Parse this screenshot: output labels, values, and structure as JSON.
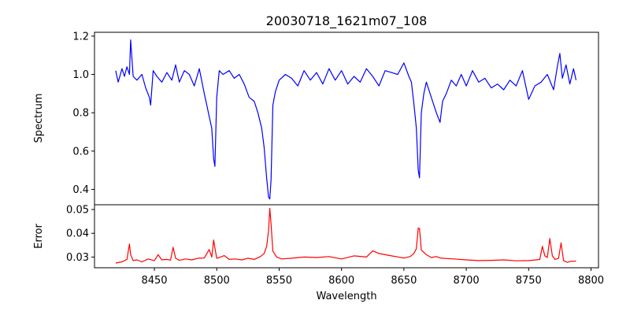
{
  "chart_data": [
    {
      "type": "line",
      "title": "20030718_1621m07_108",
      "xlabel": "",
      "ylabel": "Spectrum",
      "xlim": [
        8402,
        8806
      ],
      "ylim": [
        0.32,
        1.22
      ],
      "yticks": [
        0.4,
        0.6,
        0.8,
        1.0,
        1.2
      ],
      "ytick_labels": [
        "0.4",
        "0.6",
        "0.8",
        "1.0",
        "1.2"
      ],
      "series": [
        {
          "color": "#0000ff",
          "x": [
            8419,
            8421,
            8424,
            8426,
            8428,
            8430,
            8431,
            8433,
            8436,
            8440,
            8443,
            8446,
            8447,
            8449,
            8452,
            8456,
            8460,
            8464,
            8467,
            8470,
            8474,
            8478,
            8482,
            8486,
            8490,
            8492,
            8494,
            8496,
            8497.5,
            8498.5,
            8500,
            8502,
            8505,
            8510,
            8514,
            8518,
            8522,
            8526,
            8530,
            8533,
            8536,
            8538,
            8540,
            8541.5,
            8542.5,
            8543.5,
            8545,
            8547,
            8550,
            8555,
            8560,
            8565,
            8570,
            8575,
            8580,
            8585,
            8590,
            8595,
            8600,
            8605,
            8610,
            8615,
            8620,
            8625,
            8630,
            8635,
            8640,
            8645,
            8650,
            8654,
            8656,
            8658,
            8660,
            8661.5,
            8662.5,
            8664,
            8666,
            8668,
            8672,
            8676,
            8679,
            8681,
            8684,
            8688,
            8692,
            8696,
            8700,
            8705,
            8710,
            8715,
            8720,
            8725,
            8730,
            8735,
            8740,
            8745,
            8750,
            8755,
            8760,
            8765,
            8770,
            8773,
            8775,
            8777,
            8780,
            8783,
            8786,
            8788
          ],
          "y": [
            1.02,
            0.96,
            1.03,
            0.99,
            1.04,
            1.0,
            1.18,
            0.99,
            0.97,
            1.0,
            0.93,
            0.88,
            0.84,
            1.02,
            0.99,
            0.96,
            1.01,
            0.97,
            1.05,
            0.96,
            1.02,
            1.0,
            0.94,
            1.03,
            0.9,
            0.84,
            0.78,
            0.72,
            0.56,
            0.52,
            0.88,
            1.02,
            1.0,
            1.02,
            0.98,
            1.0,
            0.95,
            0.88,
            0.86,
            0.8,
            0.72,
            0.62,
            0.46,
            0.36,
            0.35,
            0.45,
            0.84,
            0.91,
            0.97,
            1.0,
            0.98,
            0.94,
            1.02,
            0.97,
            1.01,
            0.95,
            1.03,
            0.97,
            1.02,
            0.95,
            0.99,
            0.96,
            1.03,
            0.99,
            0.94,
            1.02,
            1.01,
            1.0,
            1.06,
            0.99,
            0.96,
            0.85,
            0.72,
            0.5,
            0.46,
            0.8,
            0.9,
            0.96,
            0.88,
            0.8,
            0.75,
            0.86,
            0.9,
            0.97,
            0.94,
            1.0,
            0.94,
            1.02,
            0.96,
            0.98,
            0.93,
            0.95,
            0.92,
            0.97,
            0.94,
            1.02,
            0.87,
            0.94,
            0.96,
            1.0,
            0.92,
            1.04,
            1.11,
            0.98,
            1.05,
            0.95,
            1.03,
            0.97
          ]
        }
      ]
    },
    {
      "type": "line",
      "title": "",
      "xlabel": "Wavelength",
      "ylabel": "Error",
      "xlim": [
        8402,
        8806
      ],
      "ylim": [
        0.0255,
        0.052
      ],
      "yticks": [
        0.03,
        0.04,
        0.05
      ],
      "ytick_labels": [
        "0.03",
        "0.04",
        "0.05"
      ],
      "xticks": [
        8450,
        8500,
        8550,
        8600,
        8650,
        8700,
        8750,
        8800
      ],
      "xtick_labels": [
        "8450",
        "8500",
        "8550",
        "8600",
        "8650",
        "8700",
        "8750",
        "8800"
      ],
      "series": [
        {
          "color": "#ff0000",
          "x": [
            8419,
            8424,
            8428,
            8430,
            8431,
            8433,
            8436,
            8440,
            8445,
            8450,
            8453,
            8456,
            8460,
            8463,
            8465,
            8467,
            8470,
            8475,
            8480,
            8485,
            8490,
            8494,
            8496,
            8497.5,
            8498.5,
            8500,
            8503,
            8506,
            8510,
            8515,
            8520,
            8525,
            8530,
            8535,
            8538,
            8540,
            8541.5,
            8542.5,
            8543.5,
            8545,
            8548,
            8552,
            8560,
            8570,
            8580,
            8590,
            8600,
            8610,
            8620,
            8625,
            8630,
            8640,
            8650,
            8655,
            8658,
            8660,
            8661.5,
            8662.5,
            8664,
            8668,
            8672,
            8676,
            8680,
            8690,
            8700,
            8710,
            8720,
            8730,
            8740,
            8750,
            8756,
            8759,
            8761,
            8763,
            8765,
            8767,
            8769,
            8771,
            8774,
            8776,
            8778,
            8781,
            8784,
            8788
          ],
          "y": [
            0.0275,
            0.028,
            0.029,
            0.0355,
            0.031,
            0.0285,
            0.0288,
            0.028,
            0.0292,
            0.0285,
            0.031,
            0.0288,
            0.029,
            0.0287,
            0.0341,
            0.0295,
            0.0286,
            0.0292,
            0.0288,
            0.0295,
            0.0296,
            0.0332,
            0.03,
            0.0372,
            0.0338,
            0.0295,
            0.03,
            0.0306,
            0.029,
            0.0292,
            0.0288,
            0.0295,
            0.029,
            0.0302,
            0.0315,
            0.0345,
            0.041,
            0.0505,
            0.044,
            0.0325,
            0.03,
            0.0292,
            0.0295,
            0.03,
            0.0298,
            0.0302,
            0.0292,
            0.0305,
            0.03,
            0.0326,
            0.0315,
            0.0305,
            0.0296,
            0.0302,
            0.0315,
            0.0335,
            0.0422,
            0.042,
            0.033,
            0.031,
            0.0298,
            0.0302,
            0.0295,
            0.0292,
            0.0288,
            0.0285,
            0.0286,
            0.0288,
            0.0284,
            0.0285,
            0.0288,
            0.029,
            0.0345,
            0.0305,
            0.0298,
            0.0378,
            0.0305,
            0.029,
            0.0295,
            0.036,
            0.0285,
            0.0278,
            0.0282,
            0.0283
          ]
        }
      ]
    }
  ]
}
